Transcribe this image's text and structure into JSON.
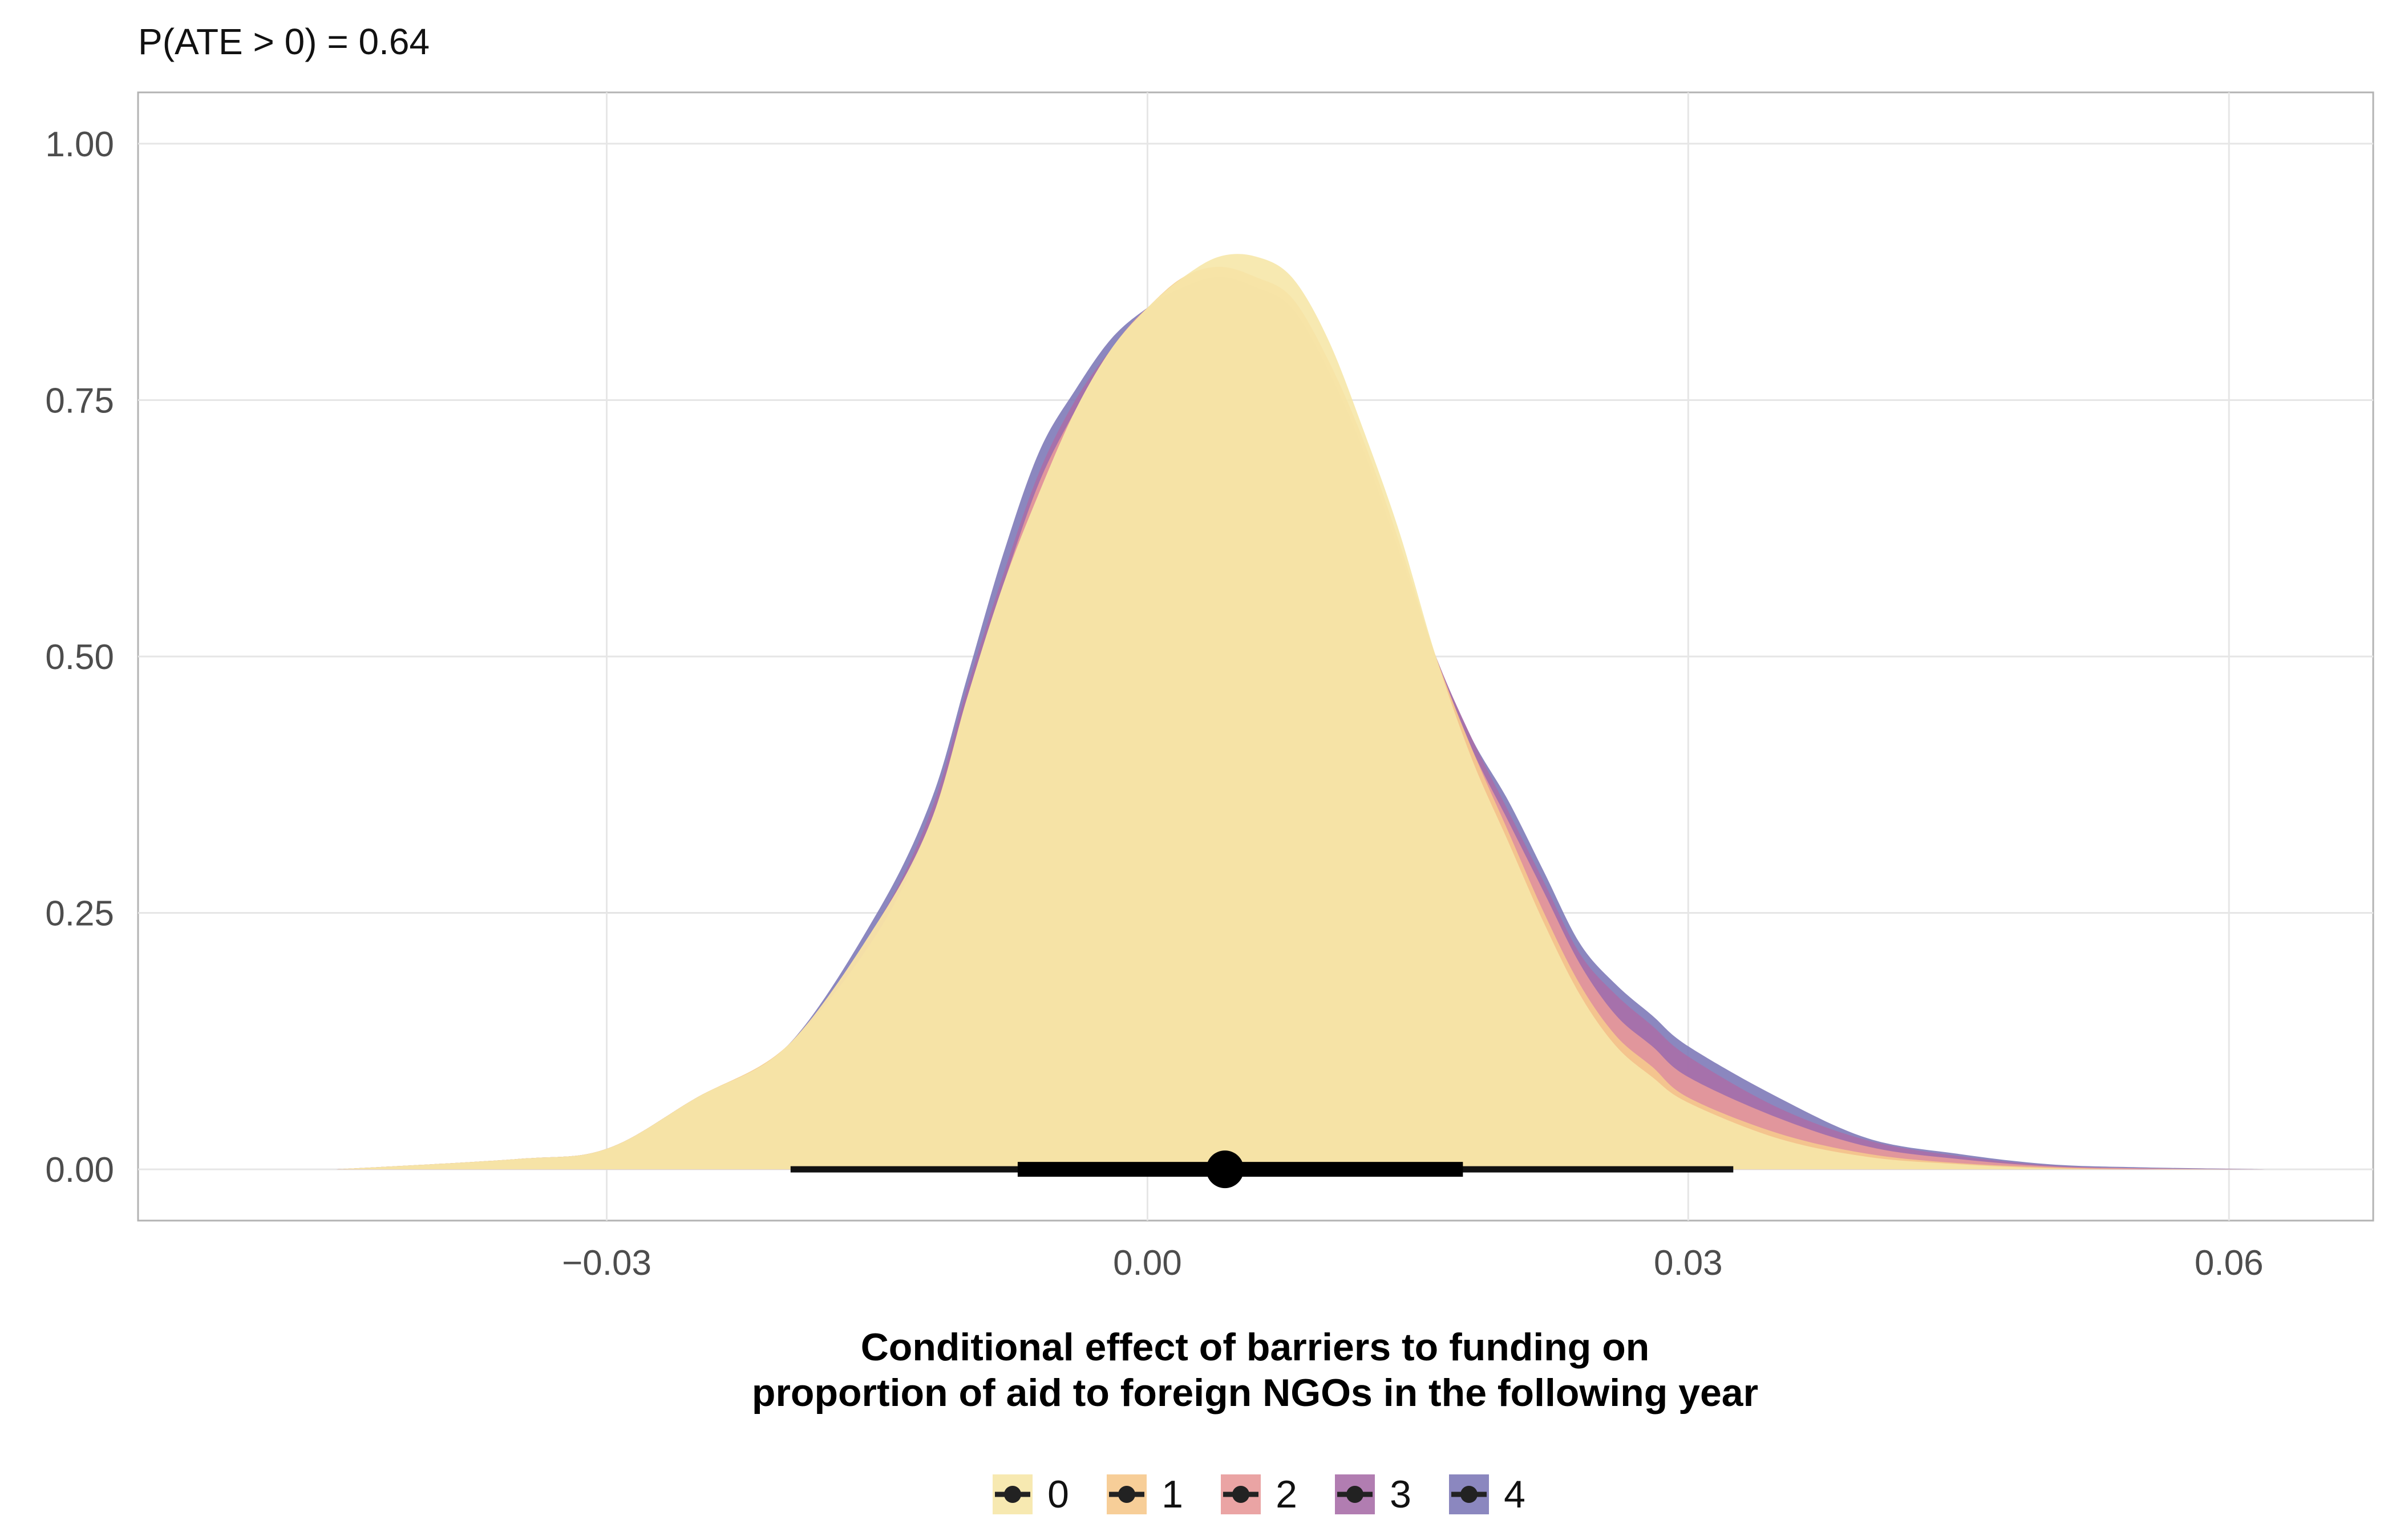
{
  "chart_data": {
    "type": "area",
    "subtitle": "P(ATE > 0) = 0.64",
    "xlabel": [
      "Conditional effect of barriers to funding on",
      "proportion of aid to foreign NGOs in the following year"
    ],
    "ylabel": "",
    "xlim": [
      -0.056,
      0.068
    ],
    "ylim": [
      -0.05,
      1.05
    ],
    "x_ticks": [
      -0.03,
      0.0,
      0.03,
      0.06
    ],
    "x_tick_labels": [
      "−0.03",
      "0.00",
      "0.03",
      "0.06"
    ],
    "y_ticks": [
      0.0,
      0.25,
      0.5,
      0.75,
      1.0
    ],
    "y_tick_labels": [
      "0.00",
      "0.25",
      "0.50",
      "0.75",
      "1.00"
    ],
    "grid": true,
    "legend_position": "bottom",
    "legend_title": "",
    "series": [
      {
        "name": "4",
        "color": "#7e7ab8",
        "x": [
          -0.045,
          -0.035,
          -0.03,
          -0.025,
          -0.02,
          -0.015,
          -0.012,
          -0.01,
          -0.008,
          -0.006,
          -0.004,
          -0.002,
          0.0,
          0.002,
          0.004,
          0.006,
          0.008,
          0.01,
          0.012,
          0.014,
          0.016,
          0.018,
          0.02,
          0.022,
          0.024,
          0.026,
          0.028,
          0.03,
          0.035,
          0.04,
          0.045,
          0.05,
          0.055,
          0.062
        ],
        "y": [
          0.0,
          0.01,
          0.02,
          0.07,
          0.12,
          0.25,
          0.36,
          0.48,
          0.6,
          0.7,
          0.76,
          0.81,
          0.84,
          0.86,
          0.87,
          0.86,
          0.84,
          0.78,
          0.7,
          0.6,
          0.5,
          0.42,
          0.36,
          0.29,
          0.22,
          0.18,
          0.15,
          0.12,
          0.07,
          0.03,
          0.015,
          0.005,
          0.002,
          0.0
        ]
      },
      {
        "name": "3",
        "color": "#a86fa8",
        "x": [
          -0.045,
          -0.035,
          -0.03,
          -0.025,
          -0.02,
          -0.015,
          -0.012,
          -0.01,
          -0.008,
          -0.006,
          -0.004,
          -0.002,
          0.0,
          0.002,
          0.004,
          0.006,
          0.008,
          0.01,
          0.012,
          0.014,
          0.016,
          0.018,
          0.02,
          0.022,
          0.024,
          0.026,
          0.028,
          0.03,
          0.035,
          0.04,
          0.045,
          0.05,
          0.055,
          0.062
        ],
        "y": [
          0.0,
          0.01,
          0.02,
          0.07,
          0.12,
          0.24,
          0.35,
          0.47,
          0.58,
          0.68,
          0.75,
          0.8,
          0.84,
          0.86,
          0.87,
          0.86,
          0.84,
          0.78,
          0.7,
          0.6,
          0.5,
          0.42,
          0.35,
          0.28,
          0.21,
          0.17,
          0.14,
          0.11,
          0.06,
          0.028,
          0.013,
          0.004,
          0.001,
          0.0
        ]
      },
      {
        "name": "2",
        "color": "#e89a9a",
        "x": [
          -0.045,
          -0.035,
          -0.03,
          -0.025,
          -0.02,
          -0.015,
          -0.012,
          -0.01,
          -0.008,
          -0.006,
          -0.004,
          -0.002,
          0.0,
          0.002,
          0.004,
          0.006,
          0.008,
          0.01,
          0.012,
          0.014,
          0.016,
          0.018,
          0.02,
          0.022,
          0.024,
          0.026,
          0.028,
          0.03,
          0.035,
          0.04,
          0.045,
          0.05,
          0.055,
          0.062
        ],
        "y": [
          0.0,
          0.01,
          0.02,
          0.07,
          0.12,
          0.24,
          0.34,
          0.46,
          0.57,
          0.67,
          0.74,
          0.8,
          0.84,
          0.86,
          0.87,
          0.86,
          0.84,
          0.78,
          0.7,
          0.6,
          0.5,
          0.41,
          0.34,
          0.27,
          0.2,
          0.15,
          0.12,
          0.09,
          0.05,
          0.022,
          0.01,
          0.003,
          0.001,
          0.0
        ]
      },
      {
        "name": "1",
        "color": "#f6c98d",
        "x": [
          -0.045,
          -0.035,
          -0.03,
          -0.025,
          -0.02,
          -0.015,
          -0.012,
          -0.01,
          -0.008,
          -0.006,
          -0.004,
          -0.002,
          0.0,
          0.002,
          0.004,
          0.006,
          0.008,
          0.01,
          0.012,
          0.014,
          0.016,
          0.018,
          0.02,
          0.022,
          0.024,
          0.026,
          0.028,
          0.03,
          0.035,
          0.04,
          0.045,
          0.05,
          0.055,
          0.062
        ],
        "y": [
          0.0,
          0.01,
          0.02,
          0.07,
          0.12,
          0.23,
          0.34,
          0.46,
          0.57,
          0.66,
          0.74,
          0.8,
          0.84,
          0.87,
          0.88,
          0.87,
          0.85,
          0.79,
          0.71,
          0.61,
          0.5,
          0.41,
          0.33,
          0.25,
          0.18,
          0.13,
          0.1,
          0.07,
          0.035,
          0.015,
          0.006,
          0.002,
          0.0,
          0.0
        ]
      },
      {
        "name": "0",
        "color": "#f6e7a9",
        "x": [
          -0.045,
          -0.035,
          -0.03,
          -0.025,
          -0.02,
          -0.015,
          -0.012,
          -0.01,
          -0.008,
          -0.006,
          -0.004,
          -0.002,
          0.0,
          0.002,
          0.004,
          0.006,
          0.008,
          0.01,
          0.012,
          0.014,
          0.016,
          0.018,
          0.02,
          0.022,
          0.024,
          0.026,
          0.028,
          0.03,
          0.035,
          0.04,
          0.045,
          0.05,
          0.055,
          0.062
        ],
        "y": [
          0.0,
          0.01,
          0.02,
          0.07,
          0.12,
          0.24,
          0.34,
          0.46,
          0.57,
          0.66,
          0.74,
          0.8,
          0.84,
          0.87,
          0.89,
          0.89,
          0.87,
          0.81,
          0.72,
          0.62,
          0.5,
          0.4,
          0.32,
          0.24,
          0.17,
          0.12,
          0.09,
          0.065,
          0.03,
          0.012,
          0.005,
          0.001,
          0.0,
          0.0
        ]
      }
    ],
    "interval": {
      "point": 0.0043,
      "inner": [
        -0.0072,
        0.0175
      ],
      "outer": [
        -0.0198,
        0.0325
      ]
    }
  }
}
